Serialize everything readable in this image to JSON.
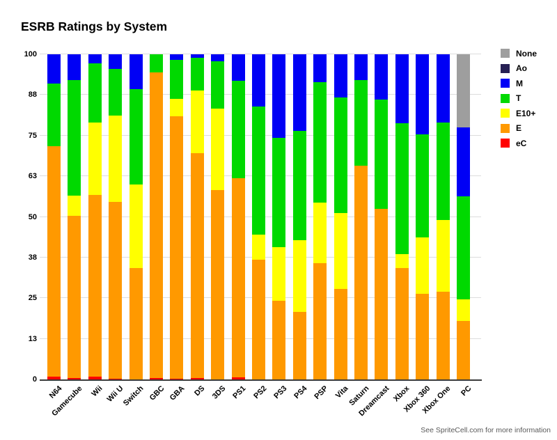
{
  "title": "ESRB Ratings by System",
  "footer": "See SpriteCell.com for more information",
  "chart_data": {
    "type": "bar",
    "stacked": true,
    "units": "percent",
    "title": "ESRB Ratings by System",
    "xlabel": "",
    "ylabel": "",
    "ylim": [
      0,
      100
    ],
    "grid": true,
    "legend_position": "right",
    "yticks": [
      {
        "label": "0",
        "value": 0
      },
      {
        "label": "13",
        "value": 12.5
      },
      {
        "label": "25",
        "value": 25
      },
      {
        "label": "38",
        "value": 37.5
      },
      {
        "label": "50",
        "value": 50
      },
      {
        "label": "63",
        "value": 62.5
      },
      {
        "label": "75",
        "value": 75
      },
      {
        "label": "88",
        "value": 87.5
      },
      {
        "label": "100",
        "value": 100
      }
    ],
    "categories": [
      "N64",
      "Gamecube",
      "Wii",
      "Wii U",
      "Switch",
      "GBC",
      "GBA",
      "DS",
      "3DS",
      "PS1",
      "PS2",
      "PS3",
      "PS4",
      "PSP",
      "Vita",
      "Saturn",
      "Dreamcast",
      "Xbox",
      "Xbox 360",
      "Xbox One",
      "PC"
    ],
    "series": [
      {
        "name": "eC",
        "color": "#ff0000",
        "values": [
          0.9,
          0.5,
          0.9,
          0.2,
          0,
          0.5,
          0.3,
          0.4,
          0,
          0.7,
          0,
          0,
          0,
          0,
          0,
          0,
          0,
          0,
          0,
          0,
          0
        ]
      },
      {
        "name": "E",
        "color": "#ff9900",
        "values": [
          70.9,
          49.9,
          55.8,
          54.5,
          34.3,
          94.0,
          80.6,
          69.2,
          58.2,
          61.1,
          36.8,
          24.3,
          20.7,
          35.7,
          27.9,
          65.7,
          52.5,
          34.3,
          26.4,
          26.9,
          17.9
        ]
      },
      {
        "name": "E10+",
        "color": "#ffff00",
        "values": [
          0,
          6.2,
          22.4,
          26.5,
          25.7,
          0,
          5.5,
          19.3,
          25.0,
          0,
          7.8,
          16.4,
          22.2,
          18.6,
          23.2,
          0,
          0,
          4.3,
          17.2,
          22.1,
          6.7
        ]
      },
      {
        "name": "T",
        "color": "#00d900",
        "values": [
          19.3,
          35.5,
          18.2,
          14.2,
          29.3,
          5.5,
          11.8,
          10.0,
          14.7,
          30.0,
          39.3,
          33.6,
          33.5,
          37.1,
          35.7,
          26.4,
          33.6,
          40.3,
          31.8,
          30.0,
          31.8
        ]
      },
      {
        "name": "M",
        "color": "#0000f5",
        "values": [
          8.9,
          7.9,
          2.7,
          4.6,
          10.7,
          0,
          1.8,
          1.1,
          2.1,
          8.2,
          16.1,
          25.7,
          23.6,
          8.6,
          13.2,
          7.9,
          13.9,
          21.1,
          24.6,
          21.0,
          21.1
        ]
      },
      {
        "name": "Ao",
        "color": "#262054",
        "values": [
          0,
          0,
          0,
          0,
          0,
          0,
          0,
          0,
          0,
          0,
          0,
          0,
          0,
          0,
          0,
          0,
          0,
          0,
          0,
          0,
          0
        ]
      },
      {
        "name": "None",
        "color": "#9e9e9e",
        "values": [
          0,
          0,
          0,
          0,
          0,
          0,
          0,
          0,
          0,
          0,
          0,
          0,
          0,
          0,
          0,
          0,
          0,
          0,
          0,
          0,
          22.5
        ]
      }
    ]
  }
}
